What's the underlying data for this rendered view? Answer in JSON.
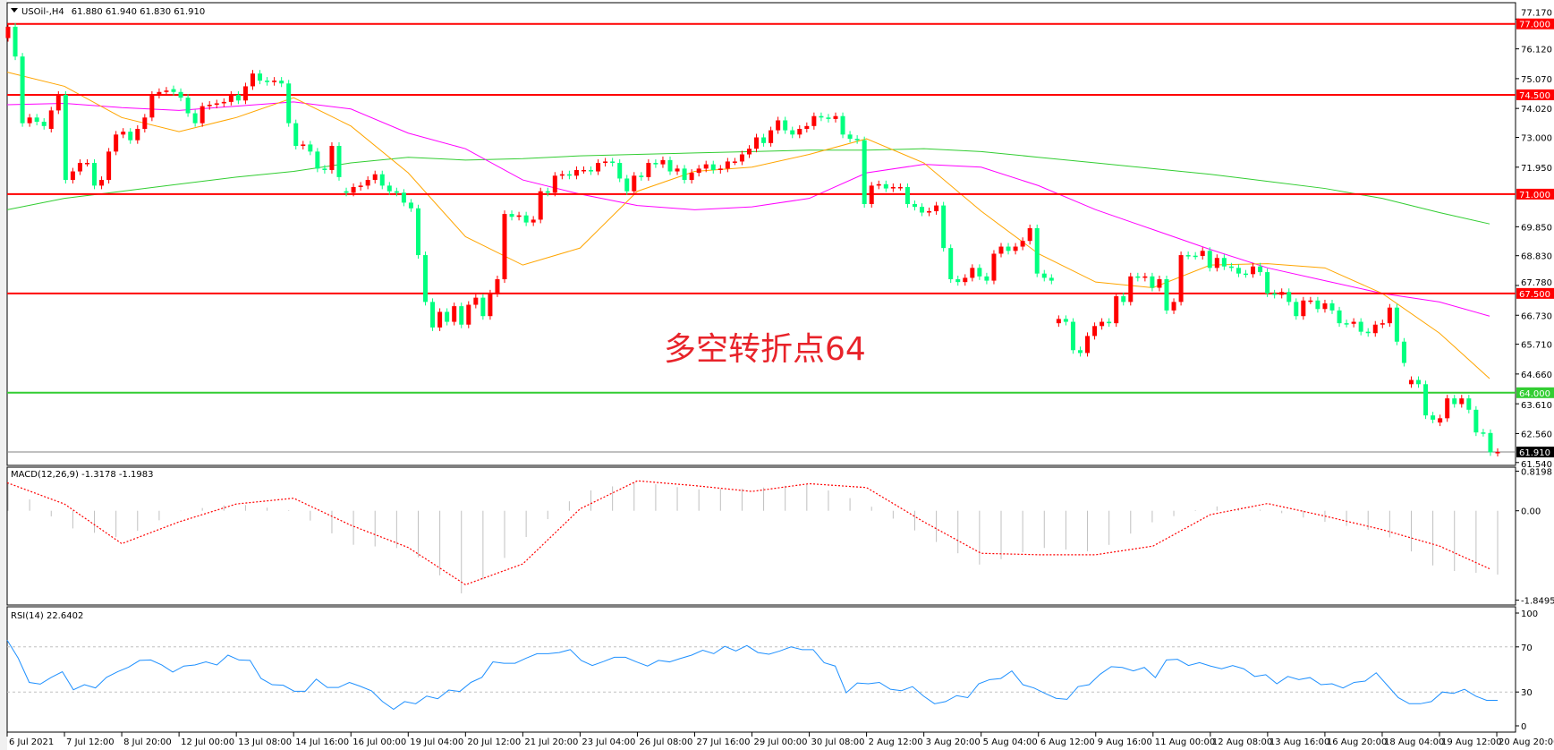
{
  "header": {
    "symbol": "USOil-,H4",
    "ohlc_readout": "61.880 61.940 61.830 61.910",
    "menu_icon": "triangle-down-icon"
  },
  "annotation": "多空转折点64",
  "colors": {
    "bull_candle": "#ff0000",
    "bear_candle": "#00ff7f",
    "resistance_line": "#ff0000",
    "pivot_line": "#32cd32",
    "ma_fast": "#ffa500",
    "ma_mid": "#ff00ff",
    "ma_slow": "#32cd32",
    "macd_hist": "#c0c0c0",
    "macd_signal": "#ff0000",
    "rsi": "#1e90ff",
    "current_price": "#808080"
  },
  "chart_data": [
    {
      "type": "candlestick",
      "title": "USOil-,H4",
      "ylim": [
        61.54,
        77.17
      ],
      "y_ticks": [
        "77.170",
        "76.120",
        "75.070",
        "74.020",
        "73.000",
        "71.950",
        "69.850",
        "68.830",
        "67.780",
        "66.730",
        "65.710",
        "64.660",
        "63.610",
        "62.560",
        "61.540"
      ],
      "x_tick_labels": [
        "6 Jul 2021",
        "7 Jul 12:00",
        "8 Jul 20:00",
        "12 Jul 00:00",
        "13 Jul 08:00",
        "14 Jul 16:00",
        "16 Jul 00:00",
        "19 Jul 04:00",
        "20 Jul 12:00",
        "21 Jul 20:00",
        "23 Jul 04:00",
        "26 Jul 08:00",
        "27 Jul 16:00",
        "29 Jul 00:00",
        "30 Jul 08:00",
        "2 Aug 12:00",
        "3 Aug 20:00",
        "5 Aug 04:00",
        "6 Aug 12:00",
        "9 Aug 16:00",
        "11 Aug 00:00",
        "12 Aug 08:00",
        "13 Aug 16:00",
        "16 Aug 20:00",
        "18 Aug 04:00",
        "19 Aug 12:00",
        "20 Aug 20:00"
      ],
      "candles_open_close": [
        [
          76.5,
          76.9
        ],
        [
          76.9,
          75.85
        ],
        [
          75.85,
          73.5
        ],
        [
          73.5,
          73.7
        ],
        [
          73.7,
          73.55
        ],
        [
          73.55,
          73.4
        ],
        [
          73.3,
          73.95
        ],
        [
          73.95,
          74.5
        ],
        [
          74.5,
          71.5
        ],
        [
          71.5,
          71.8
        ],
        [
          71.8,
          72.1
        ],
        [
          72.1,
          72.1
        ],
        [
          72.1,
          71.3
        ],
        [
          71.3,
          71.5
        ],
        [
          71.5,
          72.5
        ],
        [
          72.5,
          73.1
        ],
        [
          73.1,
          73.2
        ],
        [
          73.2,
          72.9
        ],
        [
          72.9,
          73.3
        ],
        [
          73.3,
          73.7
        ],
        [
          73.7,
          74.5
        ],
        [
          74.5,
          74.6
        ],
        [
          74.6,
          74.65
        ],
        [
          74.7,
          74.6
        ],
        [
          74.6,
          74.4
        ],
        [
          74.4,
          73.85
        ],
        [
          73.85,
          73.5
        ],
        [
          73.5,
          74.1
        ],
        [
          74.1,
          74.15
        ],
        [
          74.15,
          74.2
        ],
        [
          74.2,
          74.25
        ],
        [
          74.25,
          74.5
        ],
        [
          74.5,
          74.3
        ],
        [
          74.3,
          74.8
        ],
        [
          74.8,
          75.25
        ],
        [
          75.25,
          75.0
        ],
        [
          75.0,
          74.95
        ],
        [
          74.95,
          75.0
        ],
        [
          75.0,
          74.9
        ],
        [
          74.9,
          73.5
        ],
        [
          73.5,
          72.7
        ],
        [
          72.7,
          72.75
        ],
        [
          72.75,
          72.5
        ],
        [
          72.5,
          71.9
        ],
        [
          71.9,
          71.85
        ],
        [
          71.85,
          72.7
        ],
        [
          72.7,
          71.6
        ],
        [
          71.1,
          71.05
        ],
        [
          71.05,
          71.25
        ],
        [
          71.25,
          71.3
        ],
        [
          71.3,
          71.5
        ],
        [
          71.5,
          71.7
        ],
        [
          71.7,
          71.3
        ],
        [
          71.3,
          71.1
        ],
        [
          71.1,
          71.05
        ],
        [
          71.05,
          70.7
        ],
        [
          70.7,
          70.5
        ],
        [
          70.5,
          68.85
        ],
        [
          68.85,
          67.2
        ],
        [
          67.2,
          66.3
        ],
        [
          66.3,
          66.85
        ],
        [
          66.85,
          66.5
        ],
        [
          66.5,
          67.05
        ],
        [
          67.05,
          66.4
        ],
        [
          66.4,
          67.1
        ],
        [
          67.1,
          67.35
        ],
        [
          67.35,
          66.7
        ],
        [
          66.7,
          67.5
        ],
        [
          67.5,
          68.0
        ],
        [
          68.0,
          70.3
        ],
        [
          70.3,
          70.2
        ],
        [
          70.2,
          70.25
        ],
        [
          70.25,
          70.0
        ],
        [
          70.0,
          70.1
        ],
        [
          70.1,
          71.1
        ],
        [
          71.1,
          71.05
        ],
        [
          71.05,
          71.65
        ],
        [
          71.65,
          71.7
        ],
        [
          71.7,
          71.65
        ],
        [
          71.65,
          71.85
        ],
        [
          71.85,
          71.85
        ],
        [
          71.85,
          71.8
        ],
        [
          71.8,
          72.1
        ],
        [
          72.1,
          72.15
        ],
        [
          72.15,
          72.1
        ],
        [
          72.1,
          71.55
        ],
        [
          71.55,
          71.1
        ],
        [
          71.1,
          71.65
        ],
        [
          71.65,
          71.6
        ],
        [
          71.6,
          72.1
        ],
        [
          72.1,
          72.05
        ],
        [
          72.05,
          72.2
        ],
        [
          72.2,
          71.8
        ],
        [
          71.8,
          71.9
        ],
        [
          71.9,
          71.5
        ],
        [
          71.5,
          71.75
        ],
        [
          71.75,
          71.9
        ],
        [
          71.9,
          72.05
        ],
        [
          72.05,
          71.85
        ],
        [
          71.85,
          71.9
        ],
        [
          71.9,
          72.15
        ],
        [
          72.15,
          72.15
        ],
        [
          72.15,
          72.4
        ],
        [
          72.4,
          72.6
        ],
        [
          72.6,
          73.0
        ],
        [
          73.0,
          72.8
        ],
        [
          72.8,
          73.25
        ],
        [
          73.25,
          73.6
        ],
        [
          73.6,
          73.25
        ],
        [
          73.25,
          73.1
        ],
        [
          73.1,
          73.3
        ],
        [
          73.3,
          73.4
        ],
        [
          73.4,
          73.75
        ],
        [
          73.75,
          73.7
        ],
        [
          73.7,
          73.65
        ],
        [
          73.65,
          73.75
        ],
        [
          73.75,
          73.1
        ],
        [
          73.1,
          72.95
        ],
        [
          72.95,
          72.9
        ],
        [
          72.9,
          70.65
        ],
        [
          70.65,
          71.3
        ],
        [
          71.3,
          71.35
        ],
        [
          71.35,
          71.2
        ],
        [
          71.2,
          71.25
        ],
        [
          71.25,
          71.25
        ],
        [
          71.25,
          70.65
        ],
        [
          70.65,
          70.55
        ],
        [
          70.55,
          70.35
        ],
        [
          70.35,
          70.4
        ],
        [
          70.4,
          70.6
        ],
        [
          70.6,
          69.1
        ],
        [
          69.1,
          68.0
        ],
        [
          68.0,
          67.9
        ],
        [
          67.9,
          68.05
        ],
        [
          68.05,
          68.4
        ],
        [
          68.4,
          68.1
        ],
        [
          68.1,
          67.95
        ],
        [
          67.95,
          68.9
        ],
        [
          68.9,
          69.15
        ],
        [
          69.15,
          69.0
        ],
        [
          69.0,
          69.15
        ],
        [
          69.15,
          69.35
        ],
        [
          69.35,
          69.8
        ],
        [
          69.8,
          68.2
        ],
        [
          68.2,
          68.05
        ],
        [
          68.05,
          67.95
        ],
        [
          66.45,
          66.6
        ],
        [
          66.6,
          66.5
        ],
        [
          66.5,
          65.5
        ],
        [
          65.5,
          65.4
        ],
        [
          65.4,
          66.0
        ],
        [
          66.0,
          66.35
        ],
        [
          66.35,
          66.5
        ],
        [
          66.5,
          66.45
        ],
        [
          66.45,
          67.4
        ],
        [
          67.4,
          67.2
        ],
        [
          67.2,
          68.1
        ],
        [
          68.1,
          68.05
        ],
        [
          68.05,
          68.1
        ],
        [
          68.1,
          67.7
        ],
        [
          67.7,
          68.0
        ],
        [
          68.0,
          66.9
        ],
        [
          66.9,
          67.2
        ],
        [
          67.2,
          68.85
        ],
        [
          68.85,
          68.83
        ],
        [
          68.83,
          68.82
        ],
        [
          68.82,
          69.0
        ],
        [
          69.0,
          68.4
        ],
        [
          68.4,
          68.75
        ],
        [
          68.75,
          68.45
        ],
        [
          68.45,
          68.4
        ],
        [
          68.4,
          68.2
        ],
        [
          68.2,
          68.18
        ],
        [
          68.18,
          68.45
        ],
        [
          68.45,
          68.25
        ],
        [
          68.25,
          67.5
        ],
        [
          67.5,
          67.45
        ],
        [
          67.45,
          67.55
        ],
        [
          67.55,
          67.2
        ],
        [
          67.2,
          66.7
        ],
        [
          66.7,
          67.25
        ],
        [
          67.25,
          67.25
        ],
        [
          67.25,
          66.95
        ],
        [
          66.95,
          67.15
        ],
        [
          67.15,
          66.9
        ],
        [
          66.9,
          66.45
        ],
        [
          66.45,
          66.43
        ],
        [
          66.43,
          66.5
        ],
        [
          66.5,
          66.15
        ],
        [
          66.15,
          66.1
        ],
        [
          66.1,
          66.4
        ],
        [
          66.4,
          66.45
        ],
        [
          66.45,
          67.0
        ],
        [
          67.0,
          65.8
        ],
        [
          65.8,
          65.05
        ],
        [
          64.3,
          64.45
        ],
        [
          64.45,
          64.3
        ],
        [
          64.3,
          63.2
        ],
        [
          63.2,
          63.05
        ],
        [
          62.95,
          63.1
        ],
        [
          63.1,
          63.8
        ],
        [
          63.8,
          63.6
        ],
        [
          63.6,
          63.8
        ],
        [
          63.8,
          63.4
        ],
        [
          63.4,
          62.6
        ],
        [
          62.6,
          62.58
        ],
        [
          62.58,
          61.9
        ],
        [
          61.88,
          61.91
        ]
      ],
      "moving_averages_at_x_ticks": {
        "fast": [
          75.3,
          74.8,
          73.7,
          73.2,
          73.7,
          74.4,
          73.4,
          71.75,
          69.5,
          68.5,
          69.1,
          71.1,
          71.8,
          71.95,
          72.4,
          72.95,
          72.1,
          70.4,
          68.9,
          67.9,
          67.7,
          68.5,
          68.55,
          68.4,
          67.5,
          66.1,
          64.5
        ],
        "mid": [
          74.15,
          74.2,
          74.05,
          73.95,
          74.1,
          74.25,
          74.0,
          73.15,
          72.6,
          71.5,
          71.0,
          70.6,
          70.45,
          70.55,
          70.85,
          71.75,
          72.05,
          71.95,
          71.3,
          70.45,
          69.75,
          69.05,
          68.4,
          67.95,
          67.5,
          67.2,
          66.7
        ],
        "slow": [
          70.45,
          70.85,
          71.1,
          71.35,
          71.6,
          71.8,
          72.1,
          72.3,
          72.2,
          72.25,
          72.35,
          72.4,
          72.45,
          72.5,
          72.55,
          72.55,
          72.6,
          72.5,
          72.3,
          72.1,
          71.9,
          71.7,
          71.45,
          71.2,
          70.85,
          70.35,
          69.95
        ]
      },
      "horizontal_levels": [
        {
          "price": 77.0,
          "label": "77.000",
          "kind": "resistance"
        },
        {
          "price": 74.5,
          "label": "74.500",
          "kind": "resistance"
        },
        {
          "price": 71.0,
          "label": "71.000",
          "kind": "resistance"
        },
        {
          "price": 67.5,
          "label": "67.500",
          "kind": "resistance"
        },
        {
          "price": 64.0,
          "label": "64.000",
          "kind": "pivot"
        }
      ],
      "current_price": {
        "price": 61.91,
        "label": "61.910"
      }
    },
    {
      "type": "bar+line",
      "title": "MACD(12,26,9) -1.3178 -1.1983",
      "ylim": [
        -1.8495,
        0.8198
      ],
      "y_ticks": [
        "0.8198",
        "0.00",
        "-1.8495"
      ],
      "histogram_at_x_ticks": [
        0.6,
        -0.33,
        -0.57,
        0.0,
        0.14,
        0.0,
        -0.7,
        -0.79,
        -1.78,
        -0.6,
        0.38,
        0.6,
        0.44,
        0.46,
        0.56,
        0.14,
        -0.51,
        -1.13,
        -0.76,
        -0.85,
        -0.23,
        0.1,
        0.01,
        -0.23,
        -0.45,
        -1.22,
        -1.32
      ],
      "signal_at_x_ticks": [
        0.58,
        0.14,
        -0.68,
        -0.23,
        0.14,
        0.26,
        -0.3,
        -0.76,
        -1.53,
        -1.1,
        0.04,
        0.62,
        0.52,
        0.4,
        0.56,
        0.48,
        -0.23,
        -0.88,
        -0.91,
        -0.91,
        -0.73,
        -0.08,
        0.15,
        -0.11,
        -0.39,
        -0.73,
        -1.2
      ]
    },
    {
      "type": "line",
      "title": "RSI(14) 22.6402",
      "ylim": [
        0,
        100
      ],
      "y_ticks": [
        "100",
        "70",
        "30",
        "0"
      ],
      "levels": [
        70,
        30
      ],
      "values": [
        76,
        60,
        38.5,
        37,
        43,
        48,
        32,
        36.5,
        33.6,
        43,
        48,
        52,
        58,
        58.4,
        54,
        47.7,
        53,
        54,
        56.7,
        54,
        62.7,
        58.4,
        58,
        42,
        36.5,
        36,
        30.7,
        30.7,
        41.4,
        34,
        34,
        38.5,
        35,
        31,
        21.5,
        14.7,
        21.5,
        19.6,
        26.4,
        24,
        31.7,
        30.5,
        38.5,
        43,
        56.7,
        55.5,
        55.5,
        60,
        64,
        64,
        65,
        67.6,
        58,
        53.5,
        57,
        60.8,
        60.8,
        56.7,
        53,
        58,
        56.7,
        59.8,
        62.7,
        67,
        64,
        70.5,
        66.4,
        71.2,
        65,
        63.5,
        66.4,
        70,
        67.6,
        67.6,
        56,
        53,
        29.3,
        38,
        37.3,
        38.5,
        32.4,
        31.2,
        34.8,
        26.4,
        19.6,
        21.5,
        26.8,
        25,
        37.3,
        41,
        42,
        48.7,
        36.5,
        33.6,
        28.8,
        24.4,
        23.5,
        34.8,
        36.5,
        45.8,
        52.5,
        51.8,
        48.7,
        51.8,
        42.8,
        58.4,
        59,
        53.5,
        56,
        53,
        50.6,
        53.5,
        50.6,
        43.8,
        45.3,
        37.3,
        43.8,
        41,
        42.8,
        36.5,
        37.3,
        33.6,
        38.5,
        39.7,
        47,
        36,
        25,
        19.6,
        19.6,
        21.5,
        30,
        28.8,
        32.4,
        26.4,
        22.6,
        22.6
      ]
    }
  ]
}
